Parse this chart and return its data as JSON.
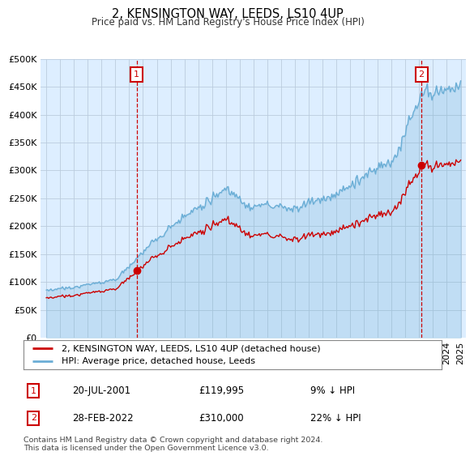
{
  "title": "2, KENSINGTON WAY, LEEDS, LS10 4UP",
  "subtitle": "Price paid vs. HM Land Registry's House Price Index (HPI)",
  "legend_line1": "2, KENSINGTON WAY, LEEDS, LS10 4UP (detached house)",
  "legend_line2": "HPI: Average price, detached house, Leeds",
  "annotation1_date": "20-JUL-2001",
  "annotation1_price": "£119,995",
  "annotation1_hpi": "9% ↓ HPI",
  "annotation2_date": "28-FEB-2022",
  "annotation2_price": "£310,000",
  "annotation2_hpi": "22% ↓ HPI",
  "footer": "Contains HM Land Registry data © Crown copyright and database right 2024.\nThis data is licensed under the Open Government Licence v3.0.",
  "hpi_color": "#6baed6",
  "price_color": "#cc0000",
  "annotation_color": "#cc0000",
  "plot_bg_color": "#ddeeff",
  "background_color": "#ffffff",
  "grid_color": "#bbccdd",
  "ylim": [
    0,
    500000
  ],
  "yticks": [
    0,
    50000,
    100000,
    150000,
    200000,
    250000,
    300000,
    350000,
    400000,
    450000,
    500000
  ],
  "sale1_year": 2001.55,
  "sale1_price": 119995,
  "sale2_year": 2022.16,
  "sale2_price": 310000
}
